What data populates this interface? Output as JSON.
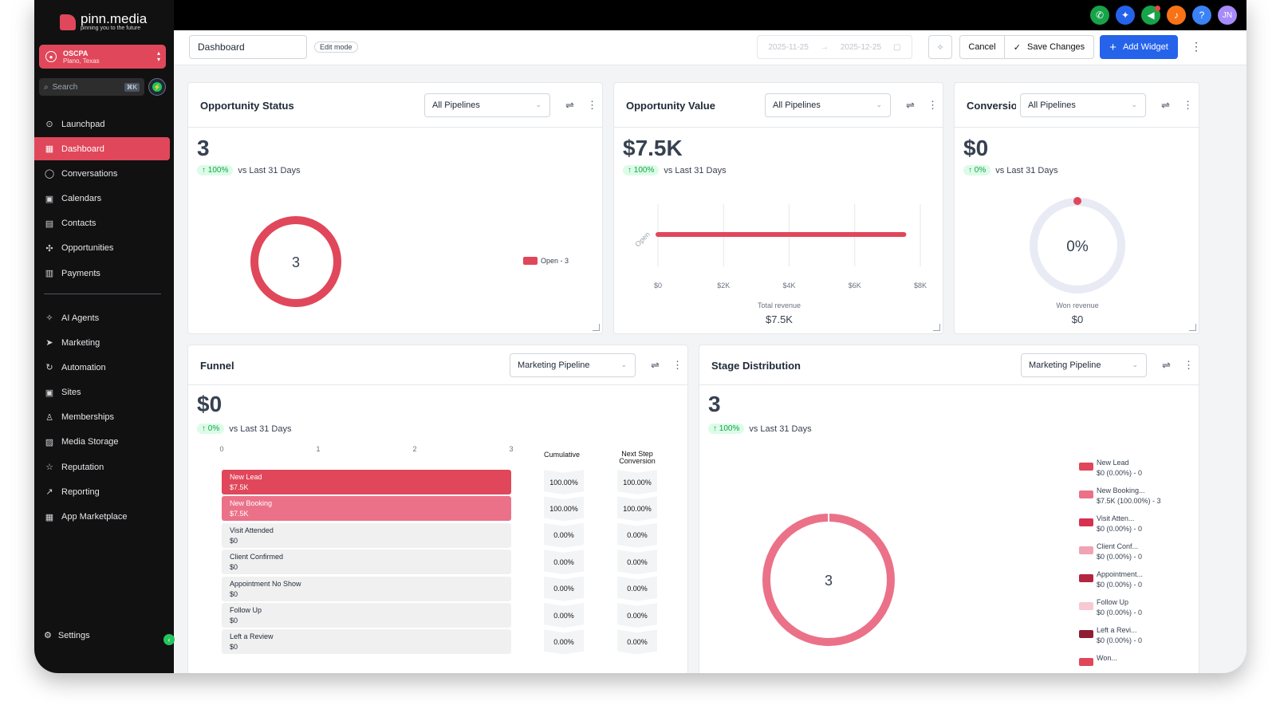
{
  "brand": {
    "name": "pinn.media",
    "tagline": "pinning you to the future"
  },
  "account": {
    "name": "OSCPA",
    "location": "Plano, Texas"
  },
  "search": {
    "placeholder": "Search",
    "shortcut": "⌘K"
  },
  "topbar": {
    "avatar": "JN"
  },
  "nav": {
    "primary": [
      {
        "label": "Launchpad",
        "icon": "rocket-icon"
      },
      {
        "label": "Dashboard",
        "icon": "grid-icon",
        "active": true
      },
      {
        "label": "Conversations",
        "icon": "chat-icon"
      },
      {
        "label": "Calendars",
        "icon": "calendar-icon"
      },
      {
        "label": "Contacts",
        "icon": "contacts-icon"
      },
      {
        "label": "Opportunities",
        "icon": "opportunities-icon"
      },
      {
        "label": "Payments",
        "icon": "payments-icon"
      }
    ],
    "secondary": [
      {
        "label": "AI Agents",
        "icon": "sparkle-icon"
      },
      {
        "label": "Marketing",
        "icon": "send-icon"
      },
      {
        "label": "Automation",
        "icon": "automation-icon"
      },
      {
        "label": "Sites",
        "icon": "sites-icon"
      },
      {
        "label": "Memberships",
        "icon": "membership-icon"
      },
      {
        "label": "Media Storage",
        "icon": "image-icon"
      },
      {
        "label": "Reputation",
        "icon": "star-icon"
      },
      {
        "label": "Reporting",
        "icon": "trend-icon"
      },
      {
        "label": "App Marketplace",
        "icon": "apps-icon"
      }
    ],
    "settings": "Settings"
  },
  "header": {
    "title": "Dashboard",
    "edit_mode": "Edit mode",
    "date_from": "2025-11-25",
    "date_to": "2025-12-25",
    "cancel": "Cancel",
    "save": "Save Changes",
    "add_widget": "Add Widget"
  },
  "widgets": {
    "opp_status": {
      "title": "Opportunity Status",
      "filter": "All Pipelines",
      "value": "3",
      "delta": "100%",
      "compare": "vs Last 31 Days",
      "center": "3",
      "legend": "Open - 3"
    },
    "opp_value": {
      "title": "Opportunity Value",
      "filter": "All Pipelines",
      "value": "$7.5K",
      "delta": "100%",
      "compare": "vs Last 31 Days",
      "footer_label": "Total revenue",
      "footer_value": "$7.5K"
    },
    "conversion": {
      "title": "Conversion",
      "filter": "All Pipelines",
      "value": "$0",
      "delta": "0%",
      "compare": "vs Last 31 Days",
      "center": "0%",
      "footer_label": "Won revenue",
      "footer_value": "$0"
    },
    "funnel": {
      "title": "Funnel",
      "filter": "Marketing Pipeline",
      "value": "$0",
      "delta": "0%",
      "compare": "vs Last 31 Days",
      "axis_ticks": [
        "0",
        "1",
        "2",
        "3"
      ],
      "col_cumulative": "Cumulative",
      "col_next_1": "Next Step",
      "col_next_2": "Conversion",
      "rows": [
        {
          "name": "New Lead",
          "value": "$7.5K",
          "cumulative": "100.00%",
          "next": "100.00%"
        },
        {
          "name": "New Booking",
          "value": "$7.5K",
          "cumulative": "100.00%",
          "next": "100.00%"
        },
        {
          "name": "Visit Attended",
          "value": "$0",
          "cumulative": "0.00%",
          "next": "0.00%"
        },
        {
          "name": "Client Confirmed",
          "value": "$0",
          "cumulative": "0.00%",
          "next": "0.00%"
        },
        {
          "name": "Appointment No Show",
          "value": "$0",
          "cumulative": "0.00%",
          "next": "0.00%"
        },
        {
          "name": "Follow Up",
          "value": "$0",
          "cumulative": "0.00%",
          "next": "0.00%"
        },
        {
          "name": "Left a Review",
          "value": "$0",
          "cumulative": "0.00%",
          "next": "0.00%"
        }
      ]
    },
    "stage": {
      "title": "Stage Distribution",
      "filter": "Marketing Pipeline",
      "value": "3",
      "delta": "100%",
      "compare": "vs Last 31 Days",
      "center": "3",
      "legend": [
        {
          "name": "New Lead",
          "detail": "$0 (0.00%) - 0",
          "color": "#e0475a"
        },
        {
          "name": "New Booking...",
          "detail": "$7.5K (100.00%) - 3",
          "color": "#eb7189"
        },
        {
          "name": "Visit Atten...",
          "detail": "$0 (0.00%) - 0",
          "color": "#d63150"
        },
        {
          "name": "Client Conf...",
          "detail": "$0 (0.00%) - 0",
          "color": "#f2a3b3"
        },
        {
          "name": "Appointment...",
          "detail": "$0 (0.00%) - 0",
          "color": "#b3263f"
        },
        {
          "name": "Follow Up",
          "detail": "$0 (0.00%) - 0",
          "color": "#f7c9d2"
        },
        {
          "name": "Left a Revi...",
          "detail": "$0 (0.00%) - 0",
          "color": "#8f1d33"
        },
        {
          "name": "Won...",
          "detail": "",
          "color": "#e0475a"
        }
      ]
    }
  },
  "chart_data": [
    {
      "type": "pie",
      "title": "Opportunity Status",
      "categories": [
        "Open"
      ],
      "values": [
        3
      ],
      "legend": "right"
    },
    {
      "type": "bar",
      "title": "Opportunity Value",
      "categories": [
        "Open"
      ],
      "values": [
        7500
      ],
      "xlabel": "Total revenue",
      "xlim": [
        0,
        8000
      ],
      "x_ticks": [
        "$0",
        "$2K",
        "$4K",
        "$6K",
        "$8K"
      ],
      "orientation": "horizontal",
      "grid": true
    },
    {
      "type": "pie",
      "title": "Conversion",
      "categories": [
        "Won"
      ],
      "values": [
        0
      ],
      "xlabel": "Won revenue"
    },
    {
      "type": "bar",
      "title": "Funnel",
      "categories": [
        "New Lead",
        "New Booking",
        "Visit Attended",
        "Client Confirmed",
        "Appointment No Show",
        "Follow Up",
        "Left a Review"
      ],
      "values": [
        3,
        3,
        0,
        0,
        0,
        0,
        0
      ],
      "xlim": [
        0,
        3
      ],
      "orientation": "horizontal"
    },
    {
      "type": "pie",
      "title": "Stage Distribution",
      "categories": [
        "New Lead",
        "New Booking",
        "Visit Attended",
        "Client Confirmed",
        "Appointment No Show",
        "Follow Up",
        "Left a Review"
      ],
      "values": [
        0,
        3,
        0,
        0,
        0,
        0,
        0
      ],
      "legend": "right"
    }
  ]
}
